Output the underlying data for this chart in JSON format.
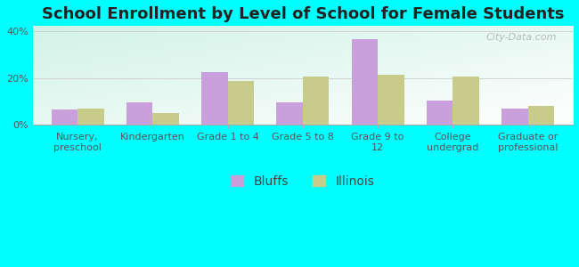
{
  "title": "School Enrollment by Level of School for Female Students",
  "categories": [
    "Nursery,\npreschool",
    "Kindergarten",
    "Grade 1 to 4",
    "Grade 5 to 8",
    "Grade 9 to\n12",
    "College\nundergrad",
    "Graduate or\nprofessional"
  ],
  "bluffs": [
    6.5,
    9.5,
    22.5,
    9.5,
    36.5,
    10.5,
    7.0
  ],
  "illinois": [
    7.0,
    5.0,
    18.5,
    20.5,
    21.5,
    20.5,
    8.0
  ],
  "bluffs_color": "#c9a0dc",
  "illinois_color": "#c8cc8a",
  "background_outer": "#00ffff",
  "ylim": [
    0,
    42
  ],
  "yticks": [
    0,
    20,
    40
  ],
  "ytick_labels": [
    "0%",
    "20%",
    "40%"
  ],
  "bar_width": 0.35,
  "title_fontsize": 13,
  "tick_fontsize": 8,
  "legend_fontsize": 10,
  "watermark": "City-Data.com"
}
